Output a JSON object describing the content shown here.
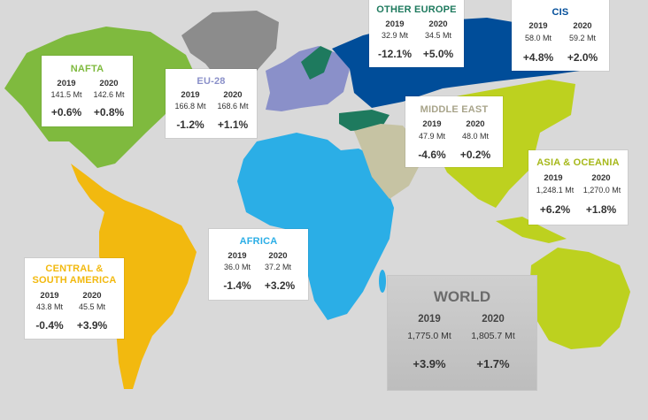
{
  "colors": {
    "ocean": "#d9d9d9",
    "nafta": "#7fba3e",
    "eu28": "#8a90c9",
    "other_europe": "#1e7a5e",
    "cis": "#004d99",
    "middle_east": "#c6c3a3",
    "asia_oceania": "#bdd11f",
    "africa": "#2baee6",
    "central_south_america": "#f2b90f",
    "greenland": "#8c8c8c"
  },
  "regions": [
    {
      "key": "nafta",
      "title": "NAFTA",
      "color": "#7fba3e",
      "y1": "2019",
      "y2": "2020",
      "v1": "141.5 Mt",
      "v2": "142.6 Mt",
      "p1": "+0.6%",
      "p2": "+0.8%"
    },
    {
      "key": "eu28",
      "title": "EU-28",
      "color": "#8a90c9",
      "y1": "2019",
      "y2": "2020",
      "v1": "166.8 Mt",
      "v2": "168.6 Mt",
      "p1": "-1.2%",
      "p2": "+1.1%"
    },
    {
      "key": "other_europe",
      "title": "OTHER EUROPE",
      "color": "#1e7a5e",
      "y1": "2019",
      "y2": "2020",
      "v1": "32.9 Mt",
      "v2": "34.5 Mt",
      "p1": "-12.1%",
      "p2": "+5.0%"
    },
    {
      "key": "cis",
      "title": "CIS",
      "color": "#004d99",
      "y1": "2019",
      "y2": "2020",
      "v1": "58.0 Mt",
      "v2": "59.2 Mt",
      "p1": "+4.8%",
      "p2": "+2.0%"
    },
    {
      "key": "middle_east",
      "title": "MIDDLE EAST",
      "color": "#a8a48a",
      "y1": "2019",
      "y2": "2020",
      "v1": "47.9 Mt",
      "v2": "48.0 Mt",
      "p1": "-4.6%",
      "p2": "+0.2%"
    },
    {
      "key": "asia_oceania",
      "title": "ASIA & OCEANIA",
      "color": "#a6b81a",
      "y1": "2019",
      "y2": "2020",
      "v1": "1,248.1 Mt",
      "v2": "1,270.0 Mt",
      "p1": "+6.2%",
      "p2": "+1.8%"
    },
    {
      "key": "africa",
      "title": "AFRICA",
      "color": "#2baee6",
      "y1": "2019",
      "y2": "2020",
      "v1": "36.0 Mt",
      "v2": "37.2 Mt",
      "p1": "-1.4%",
      "p2": "+3.2%"
    },
    {
      "key": "csa",
      "title": "CENTRAL & SOUTH AMERICA",
      "color": "#f2b90f",
      "y1": "2019",
      "y2": "2020",
      "v1": "43.8 Mt",
      "v2": "45.5 Mt",
      "p1": "-0.4%",
      "p2": "+3.9%"
    }
  ],
  "world": {
    "title": "WORLD",
    "y1": "2019",
    "y2": "2020",
    "v1": "1,775.0 Mt",
    "v2": "1,805.7 Mt",
    "p1": "+3.9%",
    "p2": "+1.7%"
  }
}
